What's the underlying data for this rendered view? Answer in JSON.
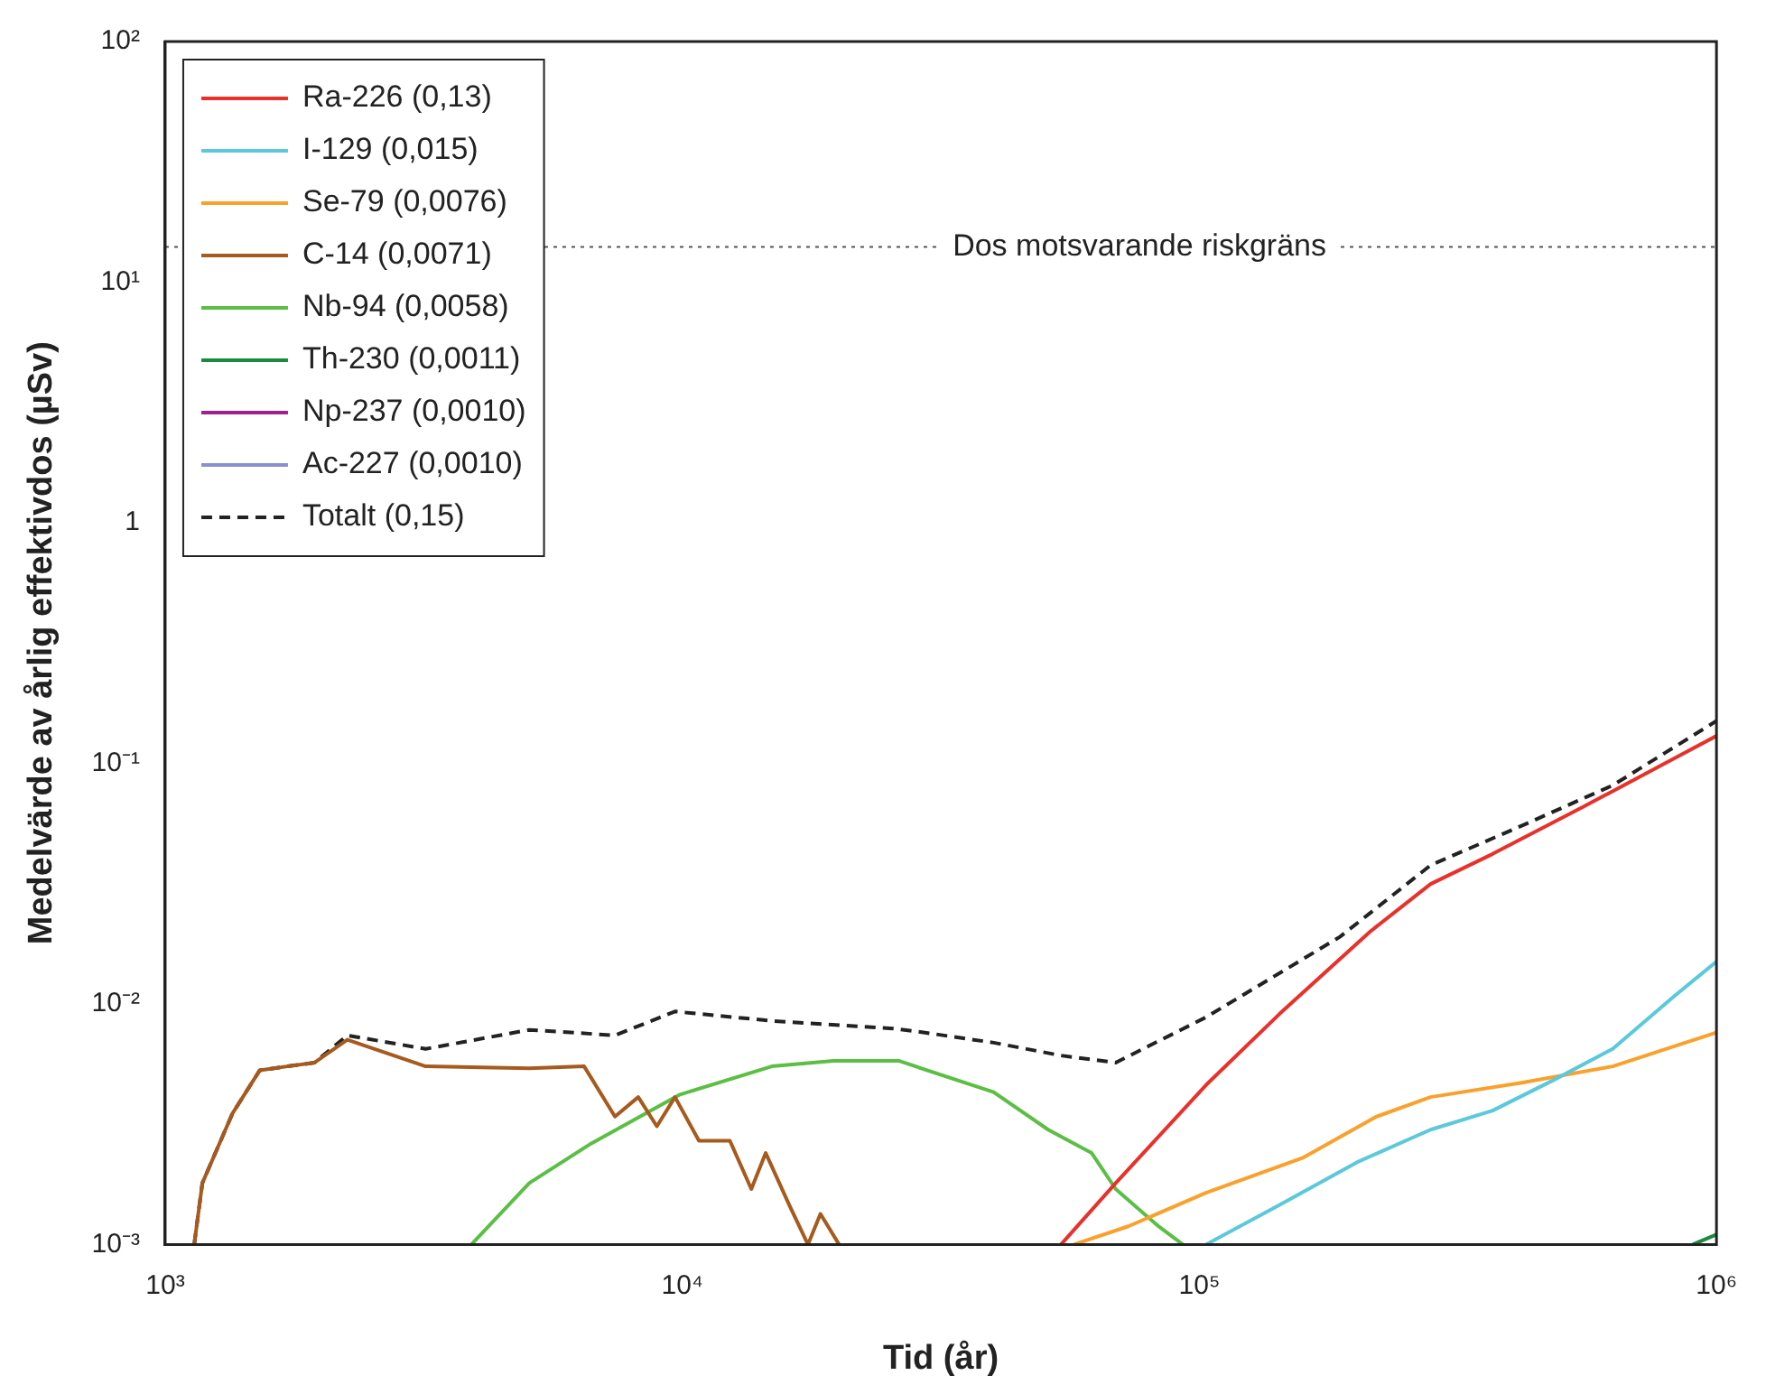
{
  "chart_data": {
    "type": "line",
    "xlabel": "Tid (år)",
    "ylabel": "Medelvärde av årlig effektivdos (µSv)",
    "log": "xy",
    "grid": false,
    "legend": "top left",
    "marker": "none",
    "line_style": "solid",
    "xlim": [
      1000,
      1000000
    ],
    "xticks": [
      {
        "value": 1000,
        "label": "10³"
      },
      {
        "value": 10000,
        "label": "10⁴"
      },
      {
        "value": 100000,
        "label": "10⁵"
      },
      {
        "value": 1000000,
        "label": "10⁶"
      }
    ],
    "ylim": [
      0.001,
      100
    ],
    "yticks": [
      {
        "value": 0.001,
        "label": "10⁻³"
      },
      {
        "value": 0.01,
        "label": "10⁻²"
      },
      {
        "value": 0.1,
        "label": "10⁻¹"
      },
      1,
      {
        "value": 10,
        "label": "10¹"
      },
      {
        "value": 100,
        "label": "10²"
      }
    ],
    "ref_lines": [
      {
        "axis": "y",
        "value": 14,
        "label": "Dos motsvarande riskgräns",
        "line_style": "dotted",
        "color": "#555555"
      }
    ],
    "series": [
      {
        "name": "Ra-226 (0,13)",
        "color": "#e8312a",
        "x": [
          54000,
          68900,
          103000,
          143000,
          214000,
          280000,
          369000,
          553000,
          830000,
          1000000
        ],
        "values": [
          0.001,
          0.0018,
          0.0046,
          0.0091,
          0.02,
          0.0315,
          0.042,
          0.066,
          0.105,
          0.13
        ]
      },
      {
        "name": "I-129 (0,015)",
        "color": "#5bc8dc",
        "x": [
          103000,
          143000,
          202000,
          280000,
          369000,
          482000,
          630000,
          830000,
          1000000
        ],
        "values": [
          0.001,
          0.00146,
          0.0022,
          0.003,
          0.0036,
          0.0048,
          0.0065,
          0.0108,
          0.015
        ]
      },
      {
        "name": "Se-79 (0,0076)",
        "color": "#f9a12c",
        "x": [
          57200,
          72900,
          103000,
          159000,
          220000,
          280000,
          420000,
          630000,
          1000000
        ],
        "values": [
          0.001,
          0.00119,
          0.00164,
          0.0023,
          0.0034,
          0.0041,
          0.0047,
          0.0055,
          0.0076
        ]
      },
      {
        "name": "C-14 (0,0071)",
        "color": "#a65a1e",
        "x": [
          1138,
          1180,
          1349,
          1524,
          1722,
          1945,
          2250,
          3190,
          5060,
          6460,
          7410,
          8220,
          8930,
          9680,
          10770,
          12360,
          13600,
          14500,
          16100,
          17500,
          18500,
          20100
        ],
        "values": [
          0.001,
          0.0018,
          0.0035,
          0.0053,
          0.0055,
          0.0057,
          0.0071,
          0.0055,
          0.0054,
          0.0055,
          0.0034,
          0.0041,
          0.0031,
          0.0041,
          0.0027,
          0.0027,
          0.0017,
          0.0024,
          0.00146,
          0.001,
          0.00134,
          0.001
        ]
      },
      {
        "name": "Nb-94 (0,0058)",
        "color": "#5bbf45",
        "x": [
          3910,
          5060,
          6610,
          9900,
          14900,
          19600,
          26200,
          40000,
          51000,
          61900,
          68900,
          83000,
          92900
        ],
        "values": [
          0.001,
          0.0018,
          0.0026,
          0.0042,
          0.0055,
          0.0058,
          0.0058,
          0.0043,
          0.003,
          0.0024,
          0.0017,
          0.0012,
          0.001
        ]
      },
      {
        "name": "Th-230 (0,0011)",
        "color": "#1a8a3e",
        "x": [
          900000,
          1000000
        ],
        "values": [
          0.001,
          0.0011
        ]
      },
      {
        "name": "Np-237 (0,0010)",
        "color": "#a0208e"
      },
      {
        "name": "Ac-227 (0,0010)",
        "color": "#8c8fd0"
      },
      {
        "name": "Totalt (0,15)",
        "color": "#222222",
        "line_style": "dashed",
        "x": [
          1138,
          1180,
          1349,
          1524,
          1722,
          1945,
          2250,
          3190,
          5060,
          7410,
          9680,
          14900,
          25600,
          28200,
          40000,
          54000,
          68900,
          103000,
          187000,
          280000,
          420000,
          630000,
          1000000
        ],
        "values": [
          0.001,
          0.0018,
          0.0035,
          0.0053,
          0.0055,
          0.0057,
          0.0074,
          0.0065,
          0.0078,
          0.0074,
          0.0093,
          0.0085,
          0.0079,
          0.0077,
          0.0069,
          0.0061,
          0.0057,
          0.0088,
          0.019,
          0.0377,
          0.055,
          0.081,
          0.15
        ]
      }
    ]
  }
}
